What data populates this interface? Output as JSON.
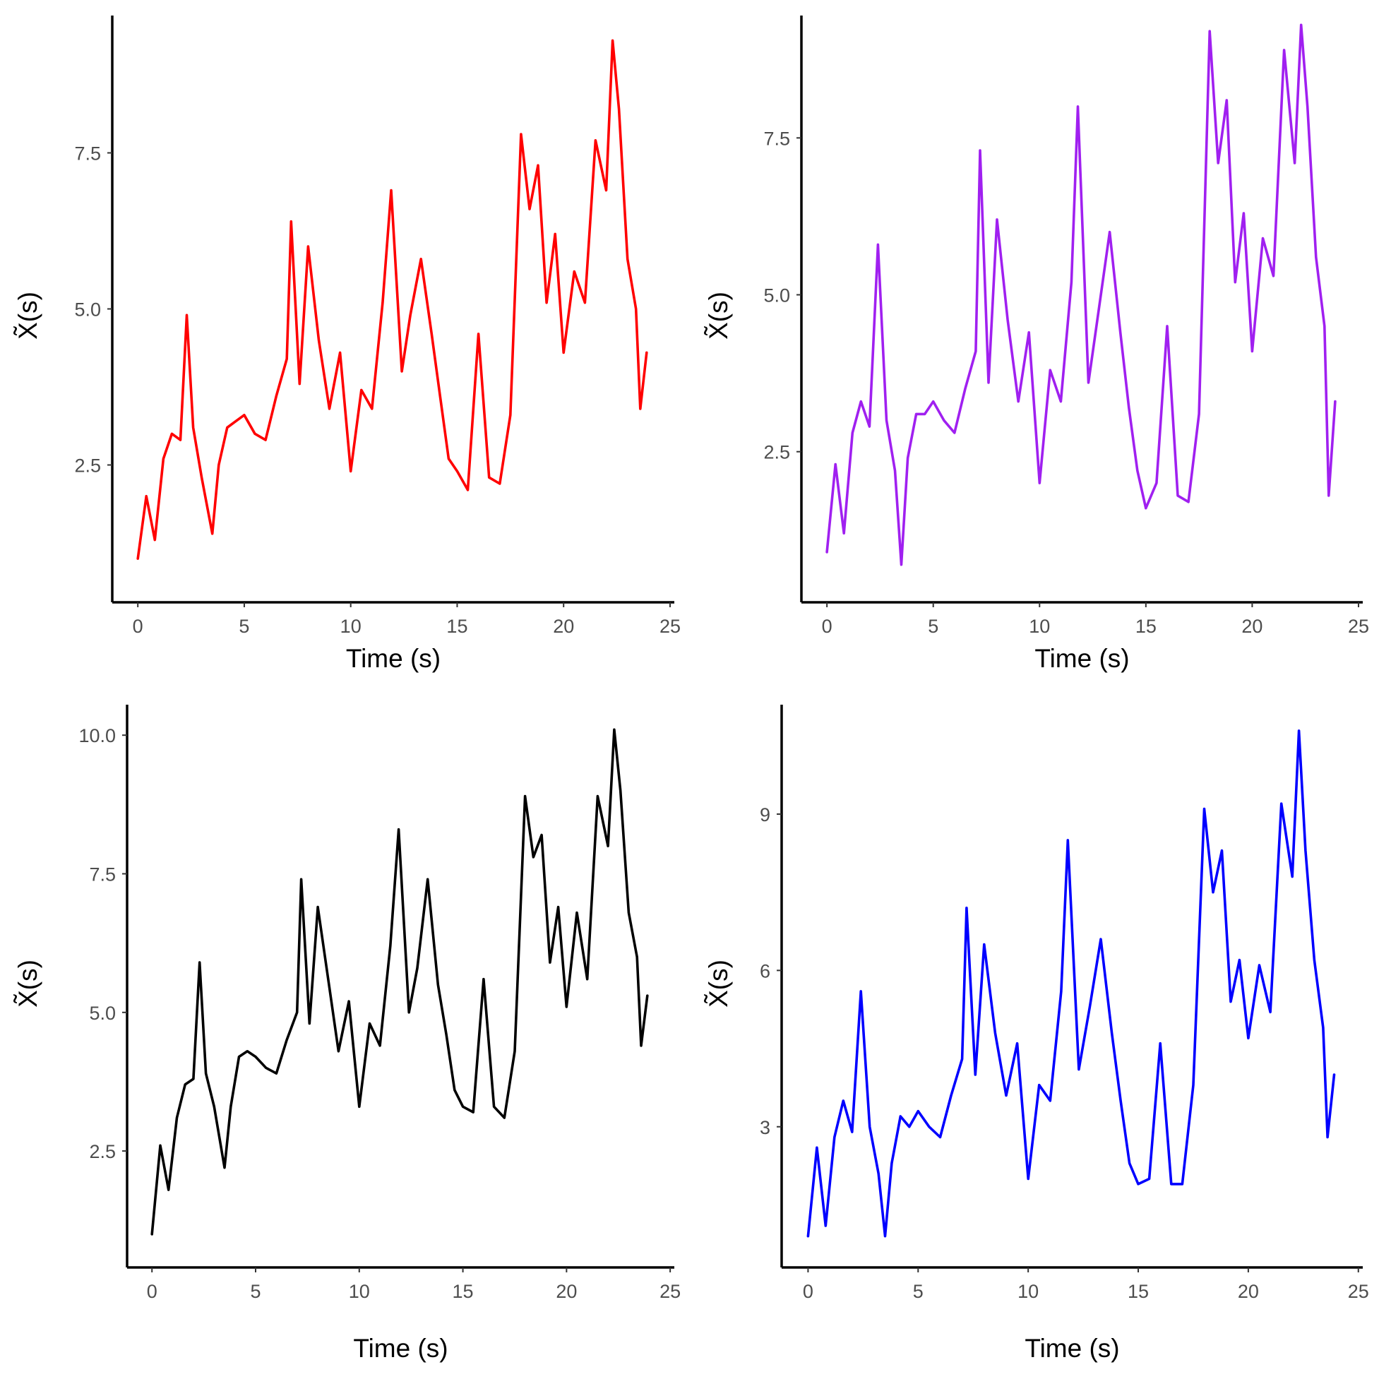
{
  "chart_data": [
    {
      "type": "line",
      "panel": "top-left",
      "xlabel": "Time (s)",
      "ylabel": "X̃(s)",
      "xlim": [
        -1.2,
        25.2
      ],
      "ylim": [
        0.3,
        9.7
      ],
      "xticks": [
        0,
        5,
        10,
        15,
        20,
        25
      ],
      "yticks": [
        2.5,
        5.0,
        7.5
      ],
      "ytick_labels": [
        "2.5",
        "5.0",
        "7.5"
      ],
      "color": "#ff0000",
      "series": [
        {
          "x": [
            0,
            0.4,
            0.8,
            1.2,
            1.6,
            2.0,
            2.3,
            2.6,
            3.0,
            3.5,
            3.8,
            4.2,
            4.6,
            5.0,
            5.5,
            6.0,
            6.5,
            7.0,
            7.2,
            7.6,
            8.0,
            8.5,
            9.0,
            9.5,
            10.0,
            10.5,
            11.0,
            11.5,
            11.9,
            12.4,
            12.8,
            13.3,
            13.8,
            14.2,
            14.6,
            15.0,
            15.5,
            16.0,
            16.5,
            17.0,
            17.5,
            18.0,
            18.4,
            18.8,
            19.2,
            19.6,
            20.0,
            20.5,
            21.0,
            21.5,
            22.0,
            22.3,
            22.6,
            23.0,
            23.4,
            23.6,
            23.9
          ],
          "y": [
            1.0,
            2.0,
            1.3,
            2.6,
            3.0,
            2.9,
            4.9,
            3.1,
            2.3,
            1.4,
            2.5,
            3.1,
            3.2,
            3.3,
            3.0,
            2.9,
            3.6,
            4.2,
            6.4,
            3.8,
            6.0,
            4.5,
            3.4,
            4.3,
            2.4,
            3.7,
            3.4,
            5.1,
            6.9,
            4.0,
            4.9,
            5.8,
            4.6,
            3.6,
            2.6,
            2.4,
            2.1,
            4.6,
            2.3,
            2.2,
            3.3,
            7.8,
            6.6,
            7.3,
            5.1,
            6.2,
            4.3,
            5.6,
            5.1,
            7.7,
            6.9,
            9.3,
            8.2,
            5.8,
            5.0,
            3.4,
            4.3
          ]
        }
      ]
    },
    {
      "type": "line",
      "panel": "top-right",
      "xlabel": "Time (s)",
      "ylabel": "X̃(s)",
      "xlim": [
        -1.2,
        25.2
      ],
      "ylim": [
        0.1,
        9.45
      ],
      "xticks": [
        0,
        5,
        10,
        15,
        20,
        25
      ],
      "yticks": [
        2.5,
        5.0,
        7.5
      ],
      "ytick_labels": [
        "2.5",
        "5.0",
        "7.5"
      ],
      "color": "#a020f0",
      "series": [
        {
          "x": [
            0,
            0.4,
            0.8,
            1.2,
            1.6,
            2.0,
            2.4,
            2.8,
            3.2,
            3.5,
            3.8,
            4.2,
            4.6,
            5.0,
            5.5,
            6.0,
            6.5,
            7.0,
            7.2,
            7.6,
            8.0,
            8.5,
            9.0,
            9.5,
            10.0,
            10.5,
            11.0,
            11.5,
            11.8,
            12.3,
            12.8,
            13.3,
            13.8,
            14.2,
            14.6,
            15.0,
            15.5,
            16.0,
            16.5,
            17.0,
            17.5,
            18.0,
            18.4,
            18.8,
            19.2,
            19.6,
            20.0,
            20.5,
            21.0,
            21.5,
            22.0,
            22.3,
            22.6,
            23.0,
            23.4,
            23.6,
            23.9
          ],
          "y": [
            0.9,
            2.3,
            1.2,
            2.8,
            3.3,
            2.9,
            5.8,
            3.0,
            2.2,
            0.7,
            2.4,
            3.1,
            3.1,
            3.3,
            3.0,
            2.8,
            3.5,
            4.1,
            7.3,
            3.6,
            6.2,
            4.6,
            3.3,
            4.4,
            2.0,
            3.8,
            3.3,
            5.2,
            8.0,
            3.6,
            4.8,
            6.0,
            4.4,
            3.2,
            2.2,
            1.6,
            2.0,
            4.5,
            1.8,
            1.7,
            3.1,
            9.2,
            7.1,
            8.1,
            5.2,
            6.3,
            4.1,
            5.9,
            5.3,
            8.9,
            7.1,
            9.3,
            8.0,
            5.6,
            4.5,
            1.8,
            3.3
          ]
        }
      ]
    },
    {
      "type": "line",
      "panel": "bottom-left",
      "xlabel": "Time (s)",
      "ylabel": "X̃(s)",
      "xlim": [
        -1.2,
        25.2
      ],
      "ylim": [
        0.4,
        10.55
      ],
      "xticks": [
        0,
        5,
        10,
        15,
        20,
        25
      ],
      "yticks": [
        2.5,
        5.0,
        7.5,
        10.0
      ],
      "ytick_labels": [
        "2.5",
        "5.0",
        "7.5",
        "10.0"
      ],
      "color": "#000000",
      "series": [
        {
          "x": [
            0,
            0.4,
            0.8,
            1.2,
            1.6,
            2.0,
            2.3,
            2.6,
            3.0,
            3.5,
            3.8,
            4.2,
            4.6,
            5.0,
            5.5,
            6.0,
            6.5,
            7.0,
            7.2,
            7.6,
            8.0,
            8.5,
            9.0,
            9.5,
            10.0,
            10.5,
            11.0,
            11.5,
            11.9,
            12.4,
            12.8,
            13.3,
            13.8,
            14.2,
            14.6,
            15.0,
            15.5,
            16.0,
            16.5,
            17.0,
            17.5,
            18.0,
            18.4,
            18.8,
            19.2,
            19.6,
            20.0,
            20.5,
            21.0,
            21.5,
            22.0,
            22.3,
            22.6,
            23.0,
            23.4,
            23.6,
            23.9
          ],
          "y": [
            1.0,
            2.6,
            1.8,
            3.1,
            3.7,
            3.8,
            5.9,
            3.9,
            3.3,
            2.2,
            3.3,
            4.2,
            4.3,
            4.2,
            4.0,
            3.9,
            4.5,
            5.0,
            7.4,
            4.8,
            6.9,
            5.6,
            4.3,
            5.2,
            3.3,
            4.8,
            4.4,
            6.2,
            8.3,
            5.0,
            5.8,
            7.4,
            5.5,
            4.6,
            3.6,
            3.3,
            3.2,
            5.6,
            3.3,
            3.1,
            4.3,
            8.9,
            7.8,
            8.2,
            5.9,
            6.9,
            5.1,
            6.8,
            5.6,
            8.9,
            8.0,
            10.1,
            9.0,
            6.8,
            6.0,
            4.4,
            5.3
          ]
        }
      ]
    },
    {
      "type": "line",
      "panel": "bottom-right",
      "xlabel": "Time (s)",
      "ylabel": "X̃(s)",
      "xlim": [
        -1.2,
        25.2
      ],
      "ylim": [
        0.3,
        11.1
      ],
      "xticks": [
        0,
        5,
        10,
        15,
        20,
        25
      ],
      "yticks": [
        3,
        6,
        9
      ],
      "ytick_labels": [
        "3",
        "6",
        "9"
      ],
      "color": "#0000ff",
      "series": [
        {
          "x": [
            0,
            0.4,
            0.8,
            1.2,
            1.6,
            2.0,
            2.4,
            2.8,
            3.2,
            3.5,
            3.8,
            4.2,
            4.6,
            5.0,
            5.5,
            6.0,
            6.5,
            7.0,
            7.2,
            7.6,
            8.0,
            8.5,
            9.0,
            9.5,
            10.0,
            10.5,
            11.0,
            11.5,
            11.8,
            12.3,
            12.8,
            13.3,
            13.8,
            14.2,
            14.6,
            15.0,
            15.5,
            16.0,
            16.5,
            17.0,
            17.5,
            18.0,
            18.4,
            18.8,
            19.2,
            19.6,
            20.0,
            20.5,
            21.0,
            21.5,
            22.0,
            22.3,
            22.6,
            23.0,
            23.4,
            23.6,
            23.9
          ],
          "y": [
            0.9,
            2.6,
            1.1,
            2.8,
            3.5,
            2.9,
            5.6,
            3.0,
            2.1,
            0.9,
            2.3,
            3.2,
            3.0,
            3.3,
            3.0,
            2.8,
            3.6,
            4.3,
            7.2,
            4.0,
            6.5,
            4.8,
            3.6,
            4.6,
            2.0,
            3.8,
            3.5,
            5.6,
            8.5,
            4.1,
            5.3,
            6.6,
            4.8,
            3.5,
            2.3,
            1.9,
            2.0,
            4.6,
            1.9,
            1.9,
            3.8,
            9.1,
            7.5,
            8.3,
            5.4,
            6.2,
            4.7,
            6.1,
            5.2,
            9.2,
            7.8,
            10.6,
            8.3,
            6.2,
            4.9,
            2.8,
            4.0
          ]
        }
      ]
    }
  ]
}
